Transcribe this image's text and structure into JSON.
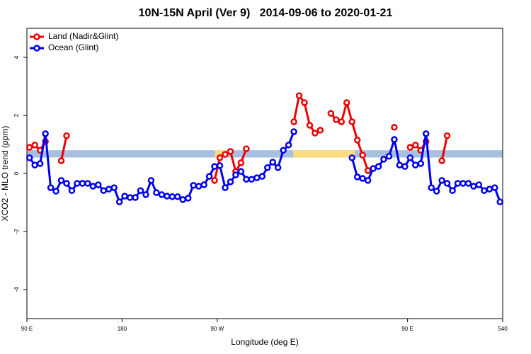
{
  "chart_data": {
    "type": "line",
    "title": "10N-15N April (Ver 9)   2014-09-06 to 2020-01-21",
    "xlabel": "Longitude (deg E)",
    "ylabel": "XCO2 - MLO trend (ppm)",
    "xlim": [
      90,
      540
    ],
    "ylim": [
      -5,
      5
    ],
    "xticks": [
      {
        "value": 90,
        "label": "90 E"
      },
      180,
      {
        "value": 270,
        "label": "90 W"
      },
      {
        "value": 450,
        "label": "90 E"
      },
      540
    ],
    "yticks": [
      -4,
      -2,
      0,
      2,
      4
    ],
    "band": [
      0.55,
      0.8
    ],
    "band_color": "#a8c0e0",
    "band_highlights": [
      [
        268,
        280
      ],
      [
        342,
        400
      ]
    ],
    "band_highlight_color": "#ffdc80",
    "legend": "top-left",
    "x": [
      92.5,
      97.5,
      102.5,
      107.5,
      112.5,
      117.5,
      122.5,
      127.5,
      132.5,
      137.5,
      142.5,
      147.5,
      152.5,
      157.5,
      162.5,
      167.5,
      172.5,
      177.5,
      182.5,
      187.5,
      192.5,
      197.5,
      202.5,
      207.5,
      212.5,
      217.5,
      222.5,
      227.5,
      232.5,
      237.5,
      242.5,
      247.5,
      252.5,
      257.5,
      262.5,
      267.5,
      272.5,
      277.5,
      282.5,
      287.5,
      292.5,
      297.5,
      302.5,
      307.5,
      312.5,
      317.5,
      322.5,
      327.5,
      332.5,
      337.5,
      342.5,
      347.5,
      352.5,
      357.5,
      362.5,
      367.5,
      372.5,
      377.5,
      382.5,
      387.5,
      392.5,
      397.5,
      402.5,
      407.5,
      412.5,
      417.5,
      422.5,
      427.5,
      432.5,
      437.5,
      442.5,
      447.5,
      452.5,
      457.5,
      462.5,
      467.5,
      472.5,
      477.5,
      482.5,
      487.5,
      492.5,
      497.5,
      502.5,
      507.5,
      512.5,
      517.5,
      522.5,
      527.5,
      532.5,
      537.5
    ],
    "series": [
      {
        "name": "Land (Nadir&Glint)",
        "color": "#ee0000",
        "values": [
          0.9,
          0.98,
          0.8,
          1.1,
          null,
          null,
          0.44,
          1.3,
          null,
          null,
          null,
          null,
          null,
          null,
          null,
          null,
          null,
          null,
          null,
          null,
          null,
          null,
          null,
          null,
          null,
          null,
          null,
          null,
          null,
          null,
          null,
          null,
          null,
          null,
          null,
          -0.24,
          0.54,
          0.66,
          0.76,
          0.07,
          0.37,
          0.85,
          null,
          null,
          null,
          null,
          null,
          null,
          null,
          null,
          1.78,
          2.68,
          2.44,
          1.66,
          1.39,
          1.49,
          null,
          2.07,
          1.85,
          1.78,
          2.44,
          1.78,
          1.15,
          0.63,
          0.1,
          null,
          null,
          null,
          null,
          1.59,
          null,
          null,
          0.9,
          0.98,
          0.8,
          1.1,
          null,
          null,
          0.44,
          1.3,
          null,
          null,
          null,
          null,
          null,
          null,
          null,
          null,
          null,
          null
        ]
      },
      {
        "name": "Ocean (Glint)",
        "color": "#0000ee",
        "values": [
          0.54,
          0.29,
          0.34,
          1.37,
          -0.49,
          -0.61,
          -0.24,
          -0.34,
          -0.59,
          -0.34,
          -0.34,
          -0.34,
          -0.44,
          -0.39,
          -0.59,
          -0.54,
          -0.49,
          -0.98,
          -0.78,
          -0.83,
          -0.83,
          -0.59,
          -0.73,
          -0.24,
          -0.66,
          -0.73,
          -0.78,
          -0.8,
          -0.8,
          -0.9,
          -0.85,
          -0.41,
          -0.44,
          -0.39,
          -0.1,
          0.24,
          0.27,
          -0.49,
          -0.29,
          -0.05,
          0.07,
          -0.2,
          -0.2,
          -0.15,
          -0.1,
          0.2,
          0.39,
          0.2,
          0.8,
          0.98,
          1.44,
          null,
          null,
          null,
          null,
          null,
          null,
          null,
          null,
          null,
          null,
          0.54,
          -0.12,
          -0.17,
          -0.24,
          0.17,
          0.24,
          0.49,
          0.59,
          1.17,
          0.29,
          0.24,
          0.54,
          0.29,
          0.34,
          1.37,
          -0.49,
          -0.61,
          -0.24,
          -0.34,
          -0.59,
          -0.34,
          -0.34,
          -0.34,
          -0.44,
          -0.39,
          -0.59,
          -0.54,
          -0.49,
          -0.98
        ]
      }
    ]
  }
}
